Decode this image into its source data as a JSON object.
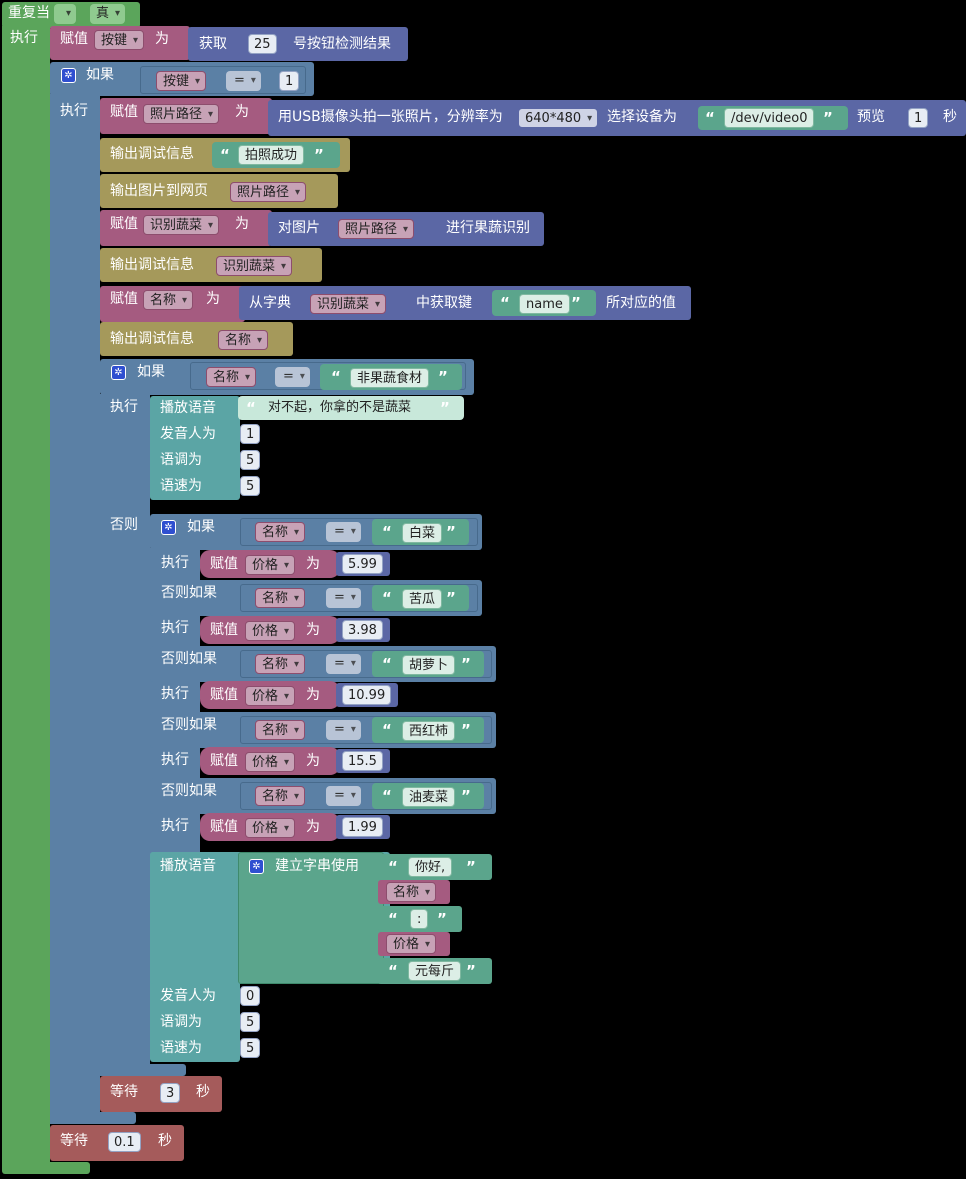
{
  "keywords": {
    "repeat_while": "重复当",
    "do": "执行",
    "if": "如果",
    "else": "否则",
    "else_if": "否则如果",
    "set": "赋值",
    "to": "为",
    "equals": "=",
    "debug_output": "输出调试信息",
    "output_image": "输出图片到网页",
    "play_voice": "播放语音",
    "speaker": "发音人为",
    "pitch": "语调为",
    "speed": "语速为",
    "wait": "等待",
    "seconds": "秒",
    "quote_open": "“",
    "quote_close": "”"
  },
  "loop": {
    "condition": "真"
  },
  "get_button": {
    "var": "按键",
    "text": "获取",
    "button_no": "25",
    "suffix": "号按钮检测结果"
  },
  "if1": {
    "var": "按键",
    "value": "1"
  },
  "photo": {
    "var": "照片路径",
    "text": "用USB摄像头拍一张照片，分辨率为",
    "resolution": "640*480",
    "device_text": "选择设备为",
    "device": "/dev/video0",
    "preview_text": "预览",
    "preview_value": "1",
    "unit": "秒"
  },
  "debug1": {
    "value": "拍照成功"
  },
  "output_img": {
    "var": "照片路径"
  },
  "recognize": {
    "var": "识别蔬菜",
    "text": "对图片",
    "image_var": "照片路径",
    "suffix": "进行果蔬识别"
  },
  "debug2": {
    "var": "识别蔬菜"
  },
  "dict": {
    "var": "名称",
    "text": "从字典",
    "dict_var": "识别蔬菜",
    "mid": "中获取键",
    "key": "name",
    "suffix": "所对应的值"
  },
  "debug3": {
    "var": "名称"
  },
  "if2": {
    "var": "名称",
    "value": "非果蔬食材"
  },
  "voice1": {
    "text": "对不起，你拿的不是蔬菜",
    "speaker": "1",
    "pitch": "5",
    "speed": "5"
  },
  "branches": [
    {
      "var": "名称",
      "value": "白菜",
      "price_var": "价格",
      "price": "5.99"
    },
    {
      "var": "名称",
      "value": "苦瓜",
      "price_var": "价格",
      "price": "3.98"
    },
    {
      "var": "名称",
      "value": "胡萝卜",
      "price_var": "价格",
      "price": "10.99"
    },
    {
      "var": "名称",
      "value": "西红柿",
      "price_var": "价格",
      "price": "15.5"
    },
    {
      "var": "名称",
      "value": "油麦菜",
      "price_var": "价格",
      "price": "1.99"
    }
  ],
  "voice2": {
    "join_text": "建立字串使用",
    "parts": [
      "你好,",
      "名称",
      ":",
      "价格",
      "元每斤"
    ],
    "speaker": "0",
    "pitch": "5",
    "speed": "5"
  },
  "wait_inner": {
    "value": "3"
  },
  "wait_outer": {
    "value": "0.1"
  },
  "colors": {
    "loop": "#5ba55b",
    "variable": "#a55b80",
    "procedure": "#5b67a5",
    "control": "#5b80a5",
    "debug": "#a5995b",
    "sound": "#5ba5a5",
    "text": "#5ba58c",
    "wait": "#a55b5b"
  }
}
